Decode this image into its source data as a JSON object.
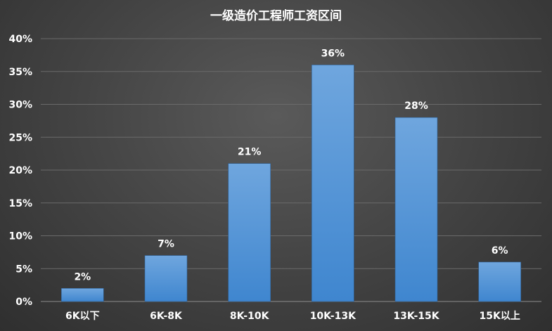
{
  "chart_data": {
    "type": "bar",
    "title": "一级造价工程师工资区间",
    "categories": [
      "6K以下",
      "6K-8K",
      "8K-10K",
      "10K-13K",
      "13K-15K",
      "15K以上"
    ],
    "values": [
      2,
      7,
      21,
      36,
      28,
      6
    ],
    "value_labels": [
      "2%",
      "7%",
      "21%",
      "36%",
      "28%",
      "6%"
    ],
    "y_ticks": [
      "0%",
      "5%",
      "10%",
      "15%",
      "20%",
      "25%",
      "30%",
      "35%",
      "40%"
    ],
    "ylim": [
      0,
      40
    ],
    "grid": true,
    "xlabel": "",
    "ylabel": "",
    "colors": {
      "bar_top": "#6fa6de",
      "bar_bottom": "#3f86cf",
      "grid": "#6a6a6a",
      "axis": "#8c8c8c",
      "text": "#ffffff"
    }
  }
}
